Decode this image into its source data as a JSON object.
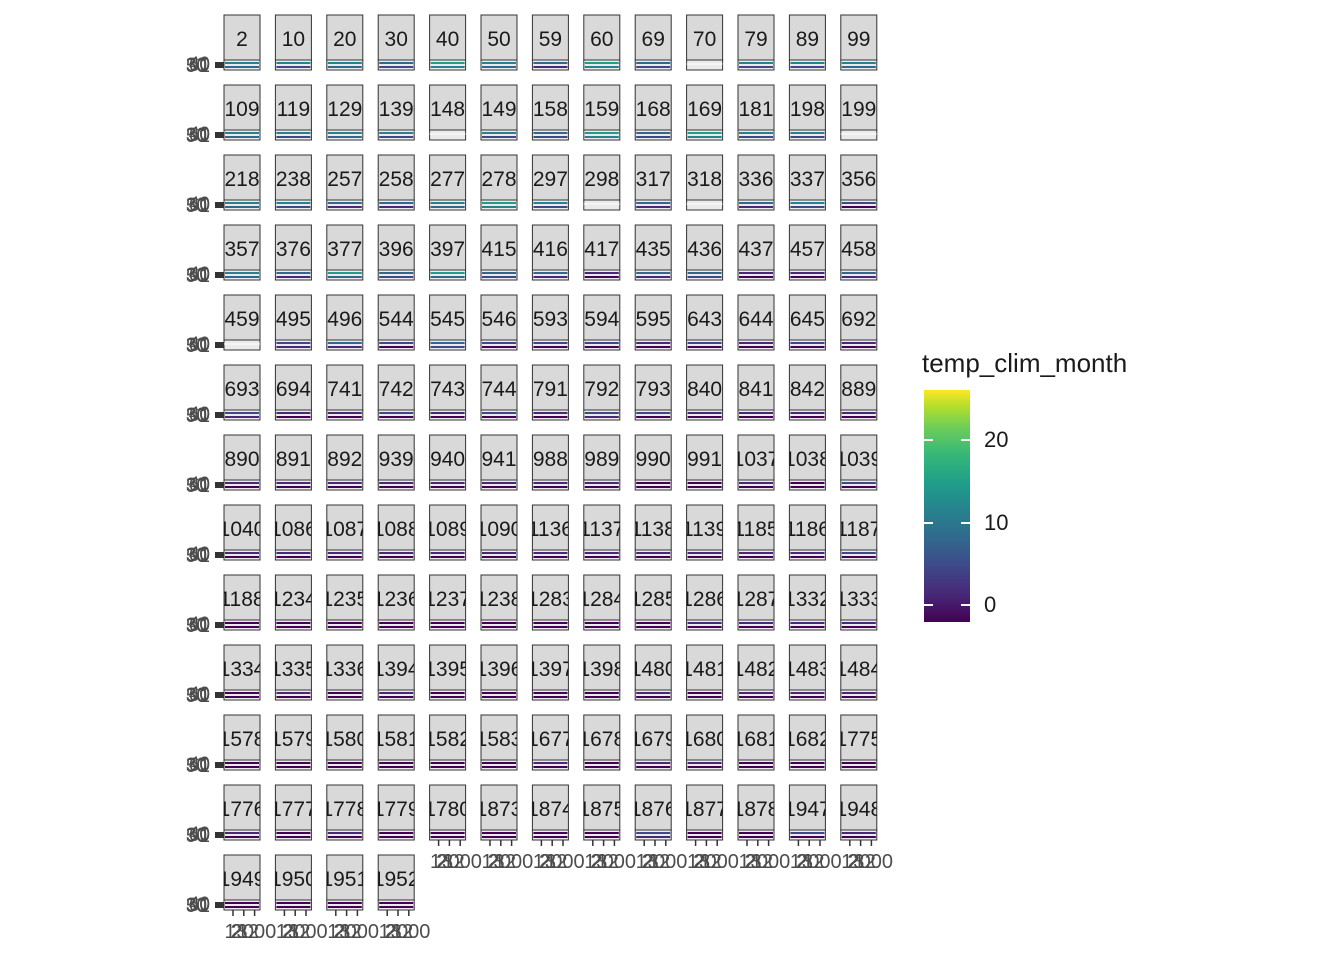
{
  "chart_data": {
    "type": "heatmap",
    "facet_labels": [
      "2",
      "10",
      "20",
      "30",
      "40",
      "50",
      "59",
      "60",
      "69",
      "70",
      "79",
      "89",
      "99",
      "109",
      "119",
      "129",
      "139",
      "148",
      "149",
      "158",
      "159",
      "168",
      "169",
      "181",
      "198",
      "199",
      "218",
      "238",
      "257",
      "258",
      "277",
      "278",
      "297",
      "298",
      "317",
      "318",
      "336",
      "337",
      "356",
      "357",
      "376",
      "377",
      "396",
      "397",
      "415",
      "416",
      "417",
      "435",
      "436",
      "437",
      "457",
      "458",
      "459",
      "495",
      "496",
      "544",
      "545",
      "546",
      "593",
      "594",
      "595",
      "643",
      "644",
      "645",
      "692",
      "693",
      "694",
      "741",
      "742",
      "743",
      "744",
      "791",
      "792",
      "793",
      "840",
      "841",
      "842",
      "889",
      "890",
      "891",
      "892",
      "939",
      "940",
      "941",
      "988",
      "989",
      "990",
      "991",
      "1037",
      "1038",
      "1039",
      "1040",
      "1086",
      "1087",
      "1088",
      "1089",
      "1090",
      "1136",
      "1137",
      "1138",
      "1139",
      "1185",
      "1186",
      "1187",
      "1188",
      "1234",
      "1235",
      "1236",
      "1237",
      "1238",
      "1283",
      "1284",
      "1285",
      "1286",
      "1287",
      "1332",
      "1333",
      "1334",
      "1335",
      "1336",
      "1394",
      "1395",
      "1396",
      "1397",
      "1398",
      "1480",
      "1481",
      "1482",
      "1483",
      "1484",
      "1578",
      "1579",
      "1580",
      "1581",
      "1582",
      "1583",
      "1677",
      "1678",
      "1679",
      "1680",
      "1681",
      "1682",
      "1775",
      "1776",
      "1777",
      "1778",
      "1779",
      "1780",
      "1873",
      "1874",
      "1875",
      "1876",
      "1877",
      "1878",
      "1947",
      "1948",
      "1949",
      "1950",
      "1951",
      "1952"
    ],
    "facet_intensity": [
      0.45,
      0.4,
      0.45,
      0.35,
      0.55,
      0.45,
      0.3,
      0.6,
      0.35,
      0,
      0.4,
      0.4,
      0.45,
      0.45,
      0.4,
      0.45,
      0.4,
      0,
      0.4,
      0.35,
      0.55,
      0.35,
      0.55,
      0.4,
      0.4,
      0,
      0.45,
      0.4,
      0.3,
      0.3,
      0.45,
      0.55,
      0.4,
      0,
      0.3,
      0,
      0.3,
      0.4,
      0.2,
      0.45,
      0.3,
      0.5,
      0.35,
      0.5,
      0.35,
      0.3,
      0.1,
      0.3,
      0.35,
      0.1,
      0.1,
      0.3,
      0,
      0.25,
      0.3,
      0.2,
      0.35,
      0.2,
      0.2,
      0.2,
      0.15,
      0.2,
      0.15,
      0.2,
      0.15,
      0.25,
      0.1,
      0.15,
      0.2,
      0.15,
      0.2,
      0.15,
      0.25,
      0.2,
      0.1,
      0.1,
      0.15,
      0.15,
      0.1,
      0.15,
      0.1,
      0.1,
      0.1,
      0.1,
      0.15,
      0.1,
      0.05,
      0.05,
      0.1,
      0.05,
      0.2,
      0.1,
      0.1,
      0.1,
      0.1,
      0.1,
      0.1,
      0.1,
      0.1,
      0.1,
      0.1,
      0.1,
      0.1,
      0.2,
      0.05,
      0.05,
      0.05,
      0.05,
      0.05,
      0.05,
      0.05,
      0.05,
      0.05,
      0.1,
      0.1,
      0.1,
      0.15,
      0.05,
      0.15,
      0.05,
      0.1,
      0.05,
      0.05,
      0.05,
      0.05,
      0.1,
      0.05,
      0.1,
      0.1,
      0.1,
      0.05,
      0.05,
      0.05,
      0.05,
      0.05,
      0.05,
      0.1,
      0.05,
      0.1,
      0.1,
      0.05,
      0.05,
      0.05,
      0.15,
      0.05,
      0.1,
      0.05,
      0.05,
      0.05,
      0.05,
      0.05,
      0.25,
      0.05,
      0.05,
      0.2,
      0.1,
      0.05,
      0.05,
      0.05,
      0.05
    ],
    "y_tick_labels": [
      "1",
      "30",
      "40",
      "50",
      "60"
    ],
    "x_tick_labels": [
      "1",
      "2",
      "3",
      "12",
      "2000"
    ],
    "legend": {
      "title": "temp_clim_month",
      "range": [
        -2,
        26
      ],
      "breaks": [
        0,
        10,
        20
      ],
      "labels": [
        "0",
        "10",
        "20"
      ],
      "colormap": "viridis",
      "low_color": "#440154",
      "high_color": "#fde725"
    },
    "grid": false,
    "legend_position": "right"
  }
}
